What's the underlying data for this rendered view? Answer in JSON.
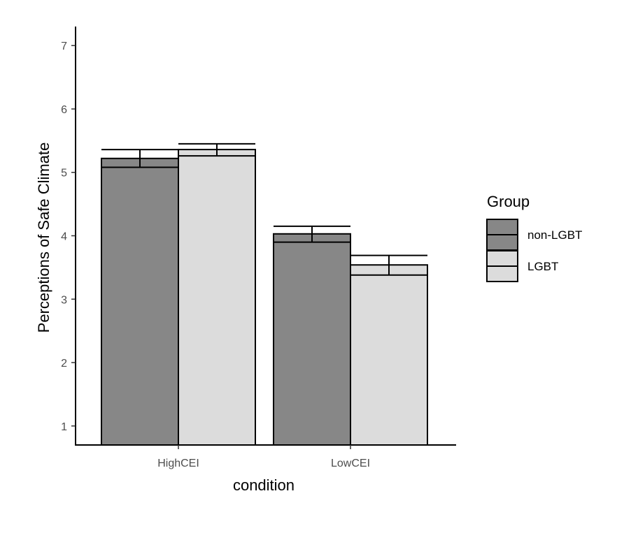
{
  "chart_data": {
    "type": "bar",
    "xlabel": "condition",
    "ylabel": "Perceptions of Safe Climate",
    "categories": [
      "HighCEI",
      "LowCEI"
    ],
    "ylim": [
      0.7,
      7.3
    ],
    "yticks": [
      1,
      2,
      3,
      4,
      5,
      6,
      7
    ],
    "grid": false,
    "legend": {
      "title": "Group",
      "placement": "right"
    },
    "series": [
      {
        "name": "non-LGBT",
        "color": "#878787",
        "values": [
          5.22,
          4.03
        ],
        "inner_line": [
          5.08,
          3.9
        ],
        "error_upper": [
          5.36,
          4.15
        ]
      },
      {
        "name": "LGBT",
        "color": "#dcdcdc",
        "values": [
          5.36,
          3.54
        ],
        "inner_line": [
          5.26,
          3.38
        ],
        "error_upper": [
          5.45,
          3.69
        ]
      }
    ]
  }
}
